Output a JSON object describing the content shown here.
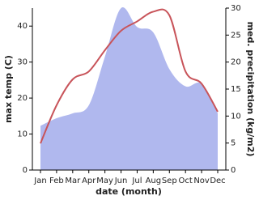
{
  "chart_data": {
    "type": "area-line",
    "x_label": "date (month)",
    "y_label": "max temp (C)",
    "y2_label": "med. precipitation (kg/m2)",
    "categories": [
      "Jan",
      "Feb",
      "Mar",
      "Apr",
      "May",
      "Jun",
      "Jul",
      "Aug",
      "Sep",
      "Oct",
      "Nov",
      "Dec"
    ],
    "series": [
      {
        "name": "med. precipitation",
        "type": "area",
        "axis": "y2",
        "color": "#b0b8ee",
        "values": [
          8.2,
          9.6,
          10.5,
          12,
          21,
          30,
          26.5,
          25.5,
          18.7,
          15.5,
          16,
          10.5
        ]
      },
      {
        "name": "max temp",
        "type": "line",
        "axis": "y",
        "color": "#c8545a",
        "values": [
          7.4,
          18,
          25.2,
          27.4,
          33.3,
          38.7,
          41.3,
          44,
          43,
          27.4,
          24,
          16.2
        ]
      }
    ],
    "ylim": [
      0,
      45
    ],
    "yticks": [
      0,
      10,
      20,
      30,
      40
    ],
    "y2lim": [
      0,
      30
    ],
    "y2ticks": [
      0,
      5,
      10,
      15,
      20,
      25,
      30
    ]
  }
}
